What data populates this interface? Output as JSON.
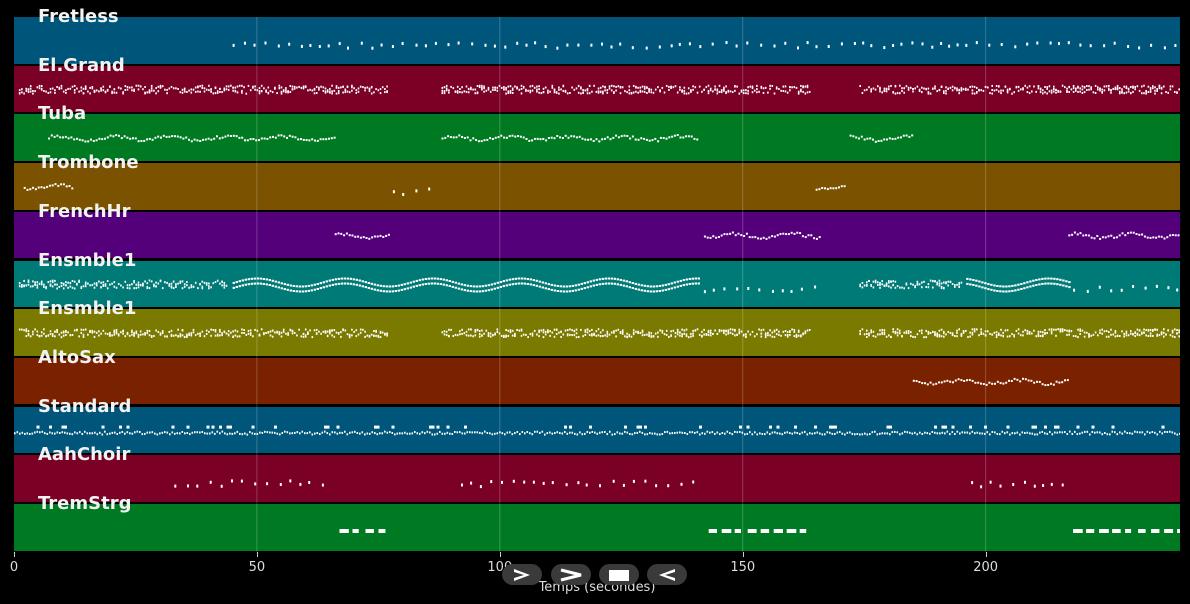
{
  "window": {
    "xlabel": "Temps (secondes)"
  },
  "axis": {
    "ticks": [
      0,
      50,
      100,
      150,
      200
    ],
    "xmax": 240
  },
  "colors": {
    "blue": "#00557a",
    "crimson": "#7a0026",
    "green": "#007a22",
    "amber": "#7a5200",
    "purple": "#54007a",
    "teal": "#007a76",
    "olive": "#7a7a00",
    "rust": "#7a2200",
    "note": "#ffffff",
    "background": "#000000"
  },
  "tracks": [
    {
      "name": "Fretless",
      "color": "#00557a",
      "segments": [
        [
          45,
          240,
          "sparse"
        ]
      ]
    },
    {
      "name": "El.Grand",
      "color": "#7a0026",
      "segments": [
        [
          1,
          77,
          "dense"
        ],
        [
          88,
          164,
          "dense"
        ],
        [
          174,
          240,
          "dense"
        ]
      ]
    },
    {
      "name": "Tuba",
      "color": "#007a22",
      "segments": [
        [
          7,
          66,
          "melody"
        ],
        [
          88,
          141,
          "melody"
        ],
        [
          172,
          185,
          "melody"
        ]
      ]
    },
    {
      "name": "Trombone",
      "color": "#7a5200",
      "segments": [
        [
          2,
          12,
          "melody"
        ],
        [
          78,
          87,
          "sparse"
        ],
        [
          165,
          171,
          "melody"
        ]
      ]
    },
    {
      "name": "FrenchHr",
      "color": "#54007a",
      "segments": [
        [
          66,
          77,
          "melody"
        ],
        [
          142,
          166,
          "melody"
        ],
        [
          217,
          240,
          "melody"
        ]
      ]
    },
    {
      "name": "Ensmble1",
      "color": "#007a76",
      "segments": [
        [
          1,
          44,
          "dense"
        ],
        [
          45,
          141,
          "wave"
        ],
        [
          142,
          165,
          "sparse"
        ],
        [
          174,
          195,
          "dense"
        ],
        [
          196,
          217,
          "wave"
        ],
        [
          218,
          240,
          "sparse"
        ]
      ]
    },
    {
      "name": "Ensmble1",
      "color": "#7a7a00",
      "segments": [
        [
          1,
          77,
          "dense"
        ],
        [
          88,
          164,
          "dense"
        ],
        [
          174,
          240,
          "dense"
        ]
      ]
    },
    {
      "name": "AltoSax",
      "color": "#7a2200",
      "segments": [
        [
          185,
          217,
          "melody"
        ]
      ]
    },
    {
      "name": "Standard",
      "color": "#00557a",
      "segments": [
        [
          0,
          240,
          "drums"
        ]
      ]
    },
    {
      "name": "AahChoir",
      "color": "#7a0026",
      "segments": [
        [
          33,
          66,
          "sparse"
        ],
        [
          92,
          141,
          "sparse"
        ],
        [
          197,
          217,
          "sparse"
        ]
      ]
    },
    {
      "name": "TremStrg",
      "color": "#007a22",
      "segments": [
        [
          67,
          77,
          "blocks"
        ],
        [
          143,
          163,
          "blocks"
        ],
        [
          218,
          240,
          "blocks"
        ]
      ]
    }
  ],
  "controls": [
    {
      "name": "play-icon"
    },
    {
      "name": "fast-forward-icon"
    },
    {
      "name": "stop-icon"
    },
    {
      "name": "rewind-icon"
    }
  ]
}
